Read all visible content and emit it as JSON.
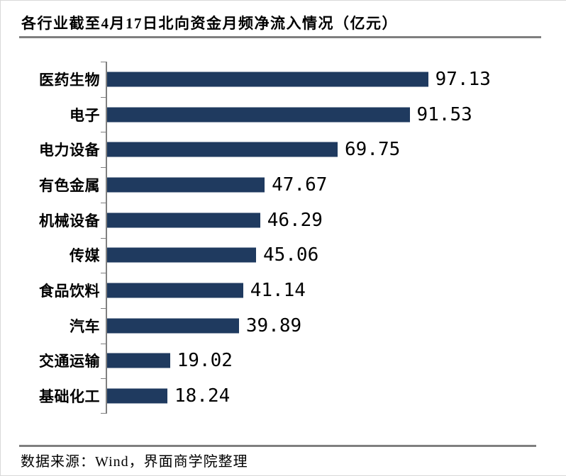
{
  "title": "各行业截至4月17日北向资金月频净流入情况（亿元）",
  "source": "数据来源：Wind，界面商学院整理",
  "colors": {
    "bar": "#1F3A5F",
    "rule": "#7F7F7F",
    "axis": "#808080",
    "text": "#000000",
    "background": "#FFFFFF"
  },
  "chart_data": {
    "type": "bar",
    "orientation": "horizontal",
    "title": "各行业截至4月17日北向资金月频净流入情况（亿元）",
    "xlabel": "",
    "ylabel": "",
    "unit": "亿元",
    "value_axis_visible": false,
    "grid": false,
    "legend": false,
    "categories": [
      "医药生物",
      "电子",
      "电力设备",
      "有色金属",
      "机械设备",
      "传媒",
      "食品饮料",
      "汽车",
      "交通运输",
      "基础化工"
    ],
    "values": [
      97.13,
      91.53,
      69.75,
      47.67,
      46.29,
      45.06,
      41.14,
      39.89,
      19.02,
      18.24
    ],
    "value_labels": [
      "97.13",
      "91.53",
      "69.75",
      "47.67",
      "46.29",
      "45.06",
      "41.14",
      "39.89",
      "19.02",
      "18.24"
    ]
  }
}
